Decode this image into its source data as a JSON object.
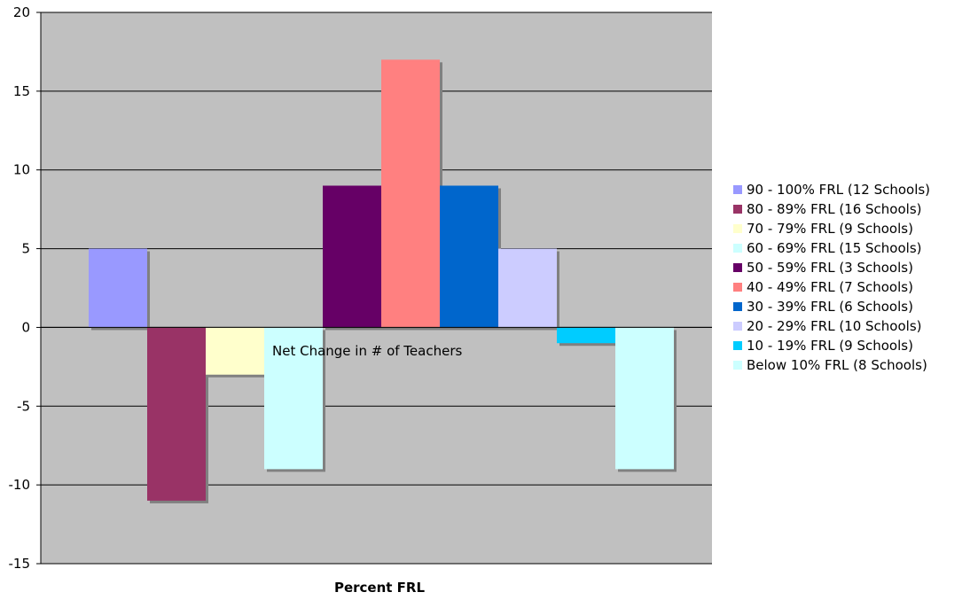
{
  "chart_data": {
    "type": "bar",
    "title": "",
    "xlabel": "Percent FRL",
    "ylabel": "",
    "category_label": "Net Change in # of Teachers",
    "ylim": [
      -15,
      20
    ],
    "yticks": [
      -15,
      -10,
      -5,
      0,
      5,
      10,
      15,
      20
    ],
    "grid": true,
    "legend_position": "right",
    "plot_background": "#c0c0c0",
    "series": [
      {
        "name": "90 - 100% FRL (12 Schools)",
        "values": [
          5
        ],
        "color": "#9999ff"
      },
      {
        "name": "80 - 89% FRL (16 Schools)",
        "values": [
          -11
        ],
        "color": "#993366"
      },
      {
        "name": "70 - 79% FRL (9 Schools)",
        "values": [
          -3
        ],
        "color": "#ffffcc"
      },
      {
        "name": "60 - 69% FRL (15 Schools)",
        "values": [
          -9
        ],
        "color": "#ccffff"
      },
      {
        "name": "50 - 59% FRL (3 Schools)",
        "values": [
          9
        ],
        "color": "#660066"
      },
      {
        "name": "40 - 49% FRL (7 Schools)",
        "values": [
          17
        ],
        "color": "#ff8080"
      },
      {
        "name": "30 - 39% FRL (6 Schools)",
        "values": [
          9
        ],
        "color": "#0066cc"
      },
      {
        "name": "20 - 29% FRL (10 Schools)",
        "values": [
          5
        ],
        "color": "#ccccff"
      },
      {
        "name": "10 - 19% FRL (9 Schools)",
        "values": [
          -1
        ],
        "color": "#00ccff"
      },
      {
        "name": "Below 10% FRL (8 Schools)",
        "values": [
          -9
        ],
        "color": "#ccffff"
      }
    ]
  }
}
